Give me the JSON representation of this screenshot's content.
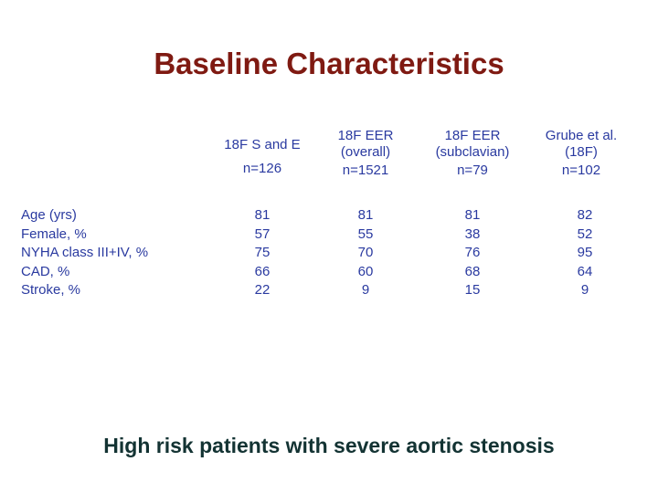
{
  "slide": {
    "title": "Baseline Characteristics",
    "subtitle": "High risk patients with severe aortic stenosis"
  },
  "table": {
    "columns": [
      {
        "header_lines": [
          "18F S and E",
          ""
        ],
        "n": "n=126"
      },
      {
        "header_lines": [
          "18F EER",
          "(overall)"
        ],
        "n": "n=1521"
      },
      {
        "header_lines": [
          "18F EER",
          "(subclavian)"
        ],
        "n": "n=79"
      },
      {
        "header_lines": [
          "Grube et al.",
          "(18F)"
        ],
        "n": "n=102"
      }
    ],
    "rows": [
      {
        "label": "Age  (yrs)",
        "values": [
          "81",
          "81",
          "81",
          "82"
        ]
      },
      {
        "label": "Female, %",
        "values": [
          "57",
          "55",
          "38",
          "52"
        ]
      },
      {
        "label": "NYHA class III+IV, %",
        "values": [
          "75",
          "70",
          "76",
          "95"
        ]
      },
      {
        "label": "CAD, %",
        "values": [
          "66",
          "60",
          "68",
          "64"
        ]
      },
      {
        "label": "Stroke, %",
        "values": [
          "22",
          "9",
          "15",
          "9"
        ]
      }
    ]
  },
  "colors": {
    "title": "#7f1a12",
    "table_text": "#2a3aa0",
    "subtitle": "#133333"
  }
}
